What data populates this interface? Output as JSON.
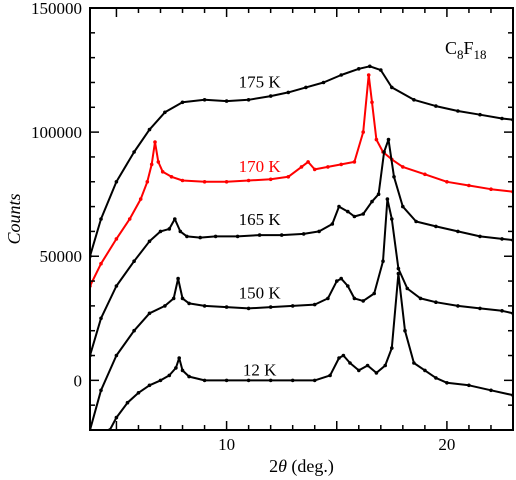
{
  "chart_data": {
    "type": "line",
    "xlabel": "2θ (deg.)",
    "ylabel": "Counts",
    "xlim": [
      3.8,
      23.0
    ],
    "ylim": [
      -20000,
      150000
    ],
    "x_ticks": [
      10,
      20
    ],
    "x_tick_labels": [
      "10",
      "20"
    ],
    "y_ticks": [
      0,
      50000,
      100000,
      150000
    ],
    "y_tick_labels": [
      "0",
      "50000",
      "100000",
      "150000"
    ],
    "annotation": {
      "base": "C",
      "sub1": "8",
      "mid": "F",
      "sub2": "18"
    },
    "grid": false,
    "series": [
      {
        "name": "175 K",
        "color": "#000000",
        "x": [
          3.8,
          4.3,
          5.0,
          5.8,
          6.5,
          7.2,
          8.0,
          9.0,
          10.0,
          11.0,
          12.0,
          12.8,
          13.6,
          14.4,
          15.2,
          16.0,
          16.5,
          17.0,
          17.5,
          18.5,
          19.5,
          20.5,
          21.5,
          22.5,
          23.0
        ],
        "y": [
          50000,
          65000,
          80000,
          92000,
          101000,
          108000,
          112000,
          113000,
          112500,
          113000,
          114500,
          116000,
          118000,
          120000,
          123000,
          125500,
          126500,
          125000,
          118000,
          113000,
          110500,
          108500,
          107000,
          105500,
          105000
        ]
      },
      {
        "name": "170 K",
        "color": "#ff0000",
        "x": [
          3.8,
          4.3,
          5.0,
          5.6,
          6.1,
          6.4,
          6.6,
          6.75,
          6.9,
          7.1,
          7.5,
          8.0,
          9.0,
          10.0,
          11.0,
          12.0,
          12.8,
          13.4,
          13.7,
          14.0,
          14.6,
          15.2,
          15.8,
          16.2,
          16.45,
          16.6,
          16.8,
          17.1,
          17.5,
          18.0,
          19.0,
          20.0,
          21.0,
          22.0,
          23.0
        ],
        "y": [
          38000,
          47000,
          57000,
          65000,
          73000,
          80000,
          87000,
          96000,
          88000,
          84000,
          82000,
          80500,
          80000,
          80000,
          80500,
          81000,
          82000,
          86000,
          88000,
          85000,
          86000,
          87000,
          88000,
          100000,
          123000,
          112000,
          97000,
          92000,
          89000,
          86000,
          83000,
          80000,
          78500,
          77000,
          76000
        ]
      },
      {
        "name": "165 K",
        "color": "#000000",
        "x": [
          3.8,
          4.3,
          5.0,
          5.8,
          6.5,
          7.0,
          7.4,
          7.65,
          7.9,
          8.2,
          8.8,
          9.5,
          10.5,
          11.5,
          12.5,
          13.5,
          14.2,
          14.8,
          15.1,
          15.5,
          15.8,
          16.2,
          16.6,
          16.9,
          17.15,
          17.35,
          17.6,
          18.0,
          18.6,
          19.5,
          20.5,
          21.5,
          22.5,
          23.0
        ],
        "y": [
          10000,
          25000,
          38000,
          48000,
          56000,
          60000,
          61000,
          65000,
          60000,
          58000,
          57500,
          58000,
          58000,
          58500,
          58500,
          59000,
          60000,
          63000,
          70000,
          68000,
          66000,
          67000,
          72000,
          75000,
          92000,
          97000,
          82000,
          70000,
          64000,
          62000,
          60000,
          58000,
          57000,
          56500
        ]
      },
      {
        "name": "150 K",
        "color": "#000000",
        "x": [
          3.8,
          4.3,
          5.0,
          5.8,
          6.5,
          7.2,
          7.6,
          7.8,
          8.0,
          8.3,
          9.0,
          10.0,
          11.0,
          12.0,
          13.0,
          14.0,
          14.6,
          15.0,
          15.2,
          15.5,
          15.8,
          16.2,
          16.7,
          17.1,
          17.3,
          17.5,
          17.8,
          18.2,
          18.8,
          19.5,
          20.5,
          21.5,
          22.5,
          23.0
        ],
        "y": [
          -20000,
          -4000,
          10000,
          20000,
          27000,
          30000,
          33000,
          41000,
          33000,
          31000,
          30000,
          29500,
          29000,
          29500,
          30000,
          30500,
          33000,
          40000,
          41000,
          38000,
          33000,
          32000,
          35000,
          48000,
          73000,
          65000,
          45000,
          37000,
          33000,
          31500,
          30000,
          29000,
          28000,
          27000
        ]
      },
      {
        "name": "12 K",
        "color": "#000000",
        "x": [
          4.7,
          5.0,
          5.5,
          6.0,
          6.5,
          7.0,
          7.4,
          7.7,
          7.85,
          8.0,
          8.3,
          9.0,
          10.0,
          11.0,
          12.0,
          13.0,
          14.0,
          14.7,
          15.1,
          15.3,
          15.6,
          16.0,
          16.4,
          16.8,
          17.2,
          17.5,
          17.8,
          18.1,
          18.5,
          19.0,
          19.5,
          20.0,
          21.0,
          22.0,
          23.0
        ],
        "y": [
          -20000,
          -15000,
          -9000,
          -5000,
          -2000,
          0,
          2000,
          5000,
          9000,
          4000,
          1500,
          0,
          0,
          0,
          0,
          0,
          0,
          2000,
          9000,
          10000,
          7000,
          4000,
          6000,
          3000,
          6000,
          13000,
          43000,
          20000,
          7000,
          4000,
          1000,
          -1000,
          -2000,
          -4000,
          -6000
        ]
      }
    ],
    "labels": [
      {
        "series": "175 K",
        "text": "175 K",
        "x": 11.5,
        "y": 118000
      },
      {
        "series": "170 K",
        "text": "170 K",
        "x": 11.5,
        "y": 84000
      },
      {
        "series": "165 K",
        "text": "165 K",
        "x": 11.5,
        "y": 62500
      },
      {
        "series": "150 K",
        "text": "150 K",
        "x": 11.5,
        "y": 33000
      },
      {
        "series": "12 K",
        "text": "12 K",
        "x": 11.5,
        "y": 2000
      }
    ]
  }
}
